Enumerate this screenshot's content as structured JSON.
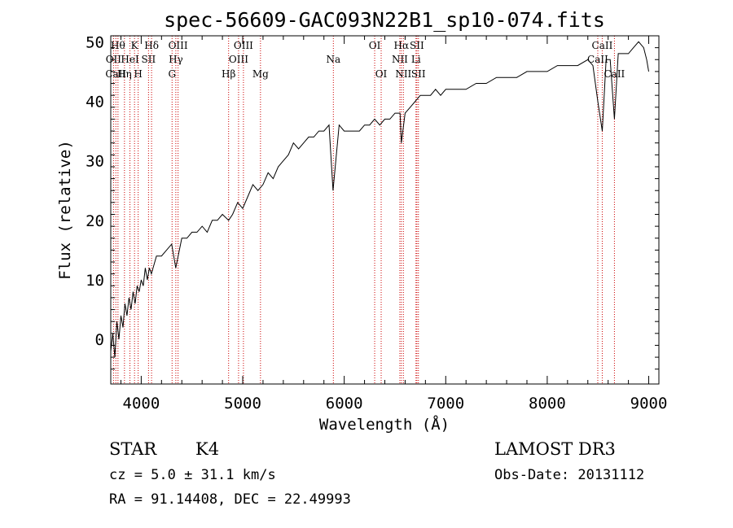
{
  "chart_data": {
    "type": "line",
    "title": "spec-56609-GAC093N22B1_sp10-074.fits",
    "xlabel": "Wavelength (Å)",
    "ylabel": "Flux (relative)",
    "xlim": [
      3700,
      9100
    ],
    "ylim": [
      -7.5,
      51
    ],
    "xticks": [
      4000,
      5000,
      6000,
      7000,
      8000,
      9000
    ],
    "yticks": [
      0,
      10,
      20,
      30,
      40,
      50
    ],
    "series": [
      {
        "name": "flux",
        "x": [
          3700,
          3720,
          3740,
          3760,
          3780,
          3800,
          3820,
          3840,
          3860,
          3880,
          3900,
          3920,
          3940,
          3960,
          3980,
          4000,
          4020,
          4040,
          4060,
          4080,
          4100,
          4150,
          4200,
          4250,
          4300,
          4340,
          4400,
          4450,
          4500,
          4550,
          4600,
          4650,
          4700,
          4750,
          4800,
          4861,
          4900,
          4950,
          5000,
          5050,
          5100,
          5150,
          5200,
          5250,
          5300,
          5350,
          5400,
          5450,
          5500,
          5550,
          5600,
          5650,
          5700,
          5750,
          5800,
          5850,
          5890,
          5950,
          6000,
          6050,
          6100,
          6150,
          6200,
          6250,
          6300,
          6350,
          6400,
          6450,
          6500,
          6550,
          6563,
          6600,
          6650,
          6700,
          6750,
          6800,
          6850,
          6900,
          6950,
          7000,
          7100,
          7200,
          7300,
          7400,
          7500,
          7600,
          7700,
          7800,
          7900,
          8000,
          8100,
          8200,
          8300,
          8400,
          8450,
          8498,
          8542,
          8580,
          8620,
          8662,
          8700,
          8750,
          8800,
          8850,
          8900,
          8950,
          8980,
          9000
        ],
        "y": [
          -2,
          1,
          -3,
          3,
          0,
          4,
          2,
          6,
          4,
          7,
          5,
          8,
          6,
          9,
          8,
          10,
          9,
          12,
          10,
          12,
          11,
          14,
          14,
          15,
          16,
          12,
          17,
          17,
          18,
          18,
          19,
          18,
          20,
          20,
          21,
          20,
          21,
          23,
          22,
          24,
          26,
          25,
          26,
          28,
          27,
          29,
          30,
          31,
          33,
          32,
          33,
          34,
          34,
          35,
          35,
          36,
          25,
          36,
          35,
          35,
          35,
          35,
          36,
          36,
          37,
          36,
          37,
          37,
          38,
          38,
          33,
          38,
          39,
          40,
          41,
          41,
          41,
          42,
          41,
          42,
          42,
          42,
          43,
          43,
          44,
          44,
          44,
          45,
          45,
          45,
          46,
          46,
          46,
          47,
          46,
          40,
          35,
          47,
          47,
          37,
          48,
          48,
          48,
          49,
          50,
          49,
          47,
          45
        ]
      }
    ],
    "lines": [
      {
        "w": 3727,
        "label": "OII",
        "row": 1
      },
      {
        "w": 3750,
        "label": "CaII",
        "row": 2
      },
      {
        "w": 3771,
        "label": "Hθ",
        "row": 0
      },
      {
        "w": 3835,
        "label": "Hη",
        "row": 2
      },
      {
        "w": 3889,
        "label": "HeI",
        "row": 1
      },
      {
        "w": 3934,
        "label": "K",
        "row": 0
      },
      {
        "w": 3970,
        "label": "H",
        "row": 2
      },
      {
        "w": 4072,
        "label": "SII",
        "row": 1
      },
      {
        "w": 4102,
        "label": "Hδ",
        "row": 0
      },
      {
        "w": 4304,
        "label": "G",
        "row": 2
      },
      {
        "w": 4341,
        "label": "Hγ",
        "row": 1
      },
      {
        "w": 4363,
        "label": "OIII",
        "row": 0
      },
      {
        "w": 4861,
        "label": "Hβ",
        "row": 2
      },
      {
        "w": 4959,
        "label": "OIII",
        "row": 1
      },
      {
        "w": 5007,
        "label": "OIII",
        "row": 0
      },
      {
        "w": 5175,
        "label": "Mg",
        "row": 2
      },
      {
        "w": 5893,
        "label": "Na",
        "row": 1
      },
      {
        "w": 6300,
        "label": "OI",
        "row": 0
      },
      {
        "w": 6364,
        "label": "OI",
        "row": 2
      },
      {
        "w": 6548,
        "label": "NII",
        "row": 1
      },
      {
        "w": 6563,
        "label": "Hα",
        "row": 0
      },
      {
        "w": 6583,
        "label": "NII",
        "row": 2
      },
      {
        "w": 6707,
        "label": "Li",
        "row": 1
      },
      {
        "w": 6716,
        "label": "SII",
        "row": 0
      },
      {
        "w": 6731,
        "label": "SII",
        "row": 2
      },
      {
        "w": 8498,
        "label": "CaII",
        "row": 1
      },
      {
        "w": 8542,
        "label": "CaII",
        "row": 0
      },
      {
        "w": 8662,
        "label": "CaII",
        "row": 2
      }
    ]
  },
  "info": {
    "class": "STAR",
    "subclass": "K4",
    "survey": "LAMOST DR3",
    "cz": "cz = 5.0 ± 31.1 km/s",
    "obs_date": "Obs-Date: 20131112",
    "coords": "RA =  91.14408, DEC =  22.49993"
  },
  "colors": {
    "line": "#000000",
    "marker": "#cc0000"
  }
}
